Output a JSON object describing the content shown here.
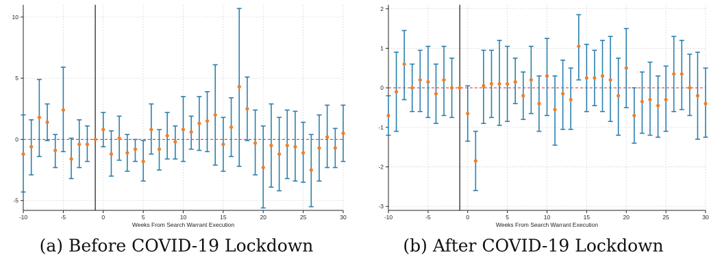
{
  "chart_data": [
    {
      "type": "scatter",
      "caption": "(a) Before COVID-19 Lockdown",
      "xlabel": "Weeks From Search Warrant Execution",
      "ylabel": "",
      "xlim": [
        -10,
        30
      ],
      "ylim": [
        -5.8,
        11
      ],
      "xticks": [
        -10,
        -5,
        0,
        5,
        10,
        15,
        20,
        25,
        30
      ],
      "yticks": [
        -5,
        0,
        5,
        10
      ],
      "grid": true,
      "vline": -1,
      "hline": 0,
      "colors": {
        "point": "#ee7f29",
        "errorbar": "#2a7fae",
        "vline": "#000000",
        "hline": "#d62728",
        "grid": "#d8d8d8"
      },
      "points": [
        {
          "x": -10,
          "y": -1.2,
          "lo": -4.3,
          "hi": 2.0
        },
        {
          "x": -9,
          "y": -0.6,
          "lo": -2.9,
          "hi": 1.6
        },
        {
          "x": -8,
          "y": 1.8,
          "lo": -1.4,
          "hi": 4.9
        },
        {
          "x": -7,
          "y": 1.4,
          "lo": -0.1,
          "hi": 2.9
        },
        {
          "x": -6,
          "y": -0.9,
          "lo": -2.3,
          "hi": 0.4
        },
        {
          "x": -5,
          "y": 2.4,
          "lo": -1.0,
          "hi": 5.9
        },
        {
          "x": -4,
          "y": -1.6,
          "lo": -3.2,
          "hi": 0.1
        },
        {
          "x": -3,
          "y": -0.4,
          "lo": -2.3,
          "hi": 1.6
        },
        {
          "x": -2,
          "y": -0.4,
          "lo": -1.8,
          "hi": 1.1
        },
        {
          "x": -1,
          "y": 0.0,
          "lo": 0.0,
          "hi": 0.0
        },
        {
          "x": 0,
          "y": 0.8,
          "lo": -0.6,
          "hi": 2.2
        },
        {
          "x": 1,
          "y": -1.2,
          "lo": -3.0,
          "hi": 0.7
        },
        {
          "x": 2,
          "y": 0.1,
          "lo": -1.7,
          "hi": 1.9
        },
        {
          "x": 3,
          "y": -1.1,
          "lo": -2.6,
          "hi": 0.4
        },
        {
          "x": 4,
          "y": -0.8,
          "lo": -1.8,
          "hi": 0.0
        },
        {
          "x": 5,
          "y": -1.8,
          "lo": -3.4,
          "hi": -0.1
        },
        {
          "x": 6,
          "y": 0.8,
          "lo": -1.2,
          "hi": 2.9
        },
        {
          "x": 7,
          "y": -0.8,
          "lo": -2.5,
          "hi": 0.8
        },
        {
          "x": 8,
          "y": 0.3,
          "lo": -1.6,
          "hi": 2.2
        },
        {
          "x": 9,
          "y": -0.2,
          "lo": -1.6,
          "hi": 1.1
        },
        {
          "x": 10,
          "y": 0.8,
          "lo": -1.8,
          "hi": 3.5
        },
        {
          "x": 11,
          "y": 0.6,
          "lo": -0.8,
          "hi": 1.9
        },
        {
          "x": 12,
          "y": 1.3,
          "lo": -0.9,
          "hi": 3.5
        },
        {
          "x": 13,
          "y": 1.5,
          "lo": -1.0,
          "hi": 3.9
        },
        {
          "x": 14,
          "y": 2.0,
          "lo": -2.1,
          "hi": 6.1
        },
        {
          "x": 15,
          "y": -0.4,
          "lo": -2.6,
          "hi": 1.8
        },
        {
          "x": 16,
          "y": 1.0,
          "lo": -1.4,
          "hi": 3.4
        },
        {
          "x": 17,
          "y": 4.3,
          "lo": -2.2,
          "hi": 10.7
        },
        {
          "x": 18,
          "y": 2.5,
          "lo": -0.1,
          "hi": 5.1
        },
        {
          "x": 19,
          "y": -0.3,
          "lo": -2.9,
          "hi": 2.4
        },
        {
          "x": 20,
          "y": -2.3,
          "lo": -5.6,
          "hi": 1.1
        },
        {
          "x": 21,
          "y": -0.5,
          "lo": -3.9,
          "hi": 2.9
        },
        {
          "x": 22,
          "y": -1.2,
          "lo": -4.2,
          "hi": 1.8
        },
        {
          "x": 23,
          "y": -0.5,
          "lo": -3.2,
          "hi": 2.4
        },
        {
          "x": 24,
          "y": -0.6,
          "lo": -3.4,
          "hi": 2.3
        },
        {
          "x": 25,
          "y": -1.1,
          "lo": -3.5,
          "hi": 1.4
        },
        {
          "x": 26,
          "y": -2.5,
          "lo": -5.5,
          "hi": 0.4
        },
        {
          "x": 27,
          "y": -0.7,
          "lo": -3.4,
          "hi": 2.0
        },
        {
          "x": 28,
          "y": 0.2,
          "lo": -2.3,
          "hi": 2.8
        },
        {
          "x": 29,
          "y": -0.7,
          "lo": -2.3,
          "hi": 0.9
        },
        {
          "x": 30,
          "y": 0.5,
          "lo": -1.8,
          "hi": 2.8
        }
      ]
    },
    {
      "type": "scatter",
      "caption": "(b) After COVID-19 Lockdown",
      "xlabel": "Weeks From Search Warrant Execution",
      "ylabel": "",
      "xlim": [
        -10,
        30
      ],
      "ylim": [
        -3.1,
        2.1
      ],
      "xticks": [
        -10,
        -5,
        0,
        5,
        10,
        15,
        20,
        25,
        30
      ],
      "yticks": [
        -3,
        -2,
        -1,
        0,
        1,
        2
      ],
      "grid": true,
      "vline": -1,
      "hline": 0,
      "colors": {
        "point": "#ee7f29",
        "errorbar": "#2a7fae",
        "vline": "#000000",
        "hline": "#d62728",
        "grid": "#d8d8d8"
      },
      "points": [
        {
          "x": -10,
          "y": -0.7,
          "lo": -1.2,
          "hi": -0.2
        },
        {
          "x": -9,
          "y": -0.1,
          "lo": -1.1,
          "hi": 0.9
        },
        {
          "x": -8,
          "y": 0.6,
          "lo": -0.3,
          "hi": 1.45
        },
        {
          "x": -7,
          "y": 0.0,
          "lo": -0.6,
          "hi": 0.6
        },
        {
          "x": -6,
          "y": 0.2,
          "lo": -0.6,
          "hi": 0.95
        },
        {
          "x": -5,
          "y": 0.15,
          "lo": -0.75,
          "hi": 1.05
        },
        {
          "x": -4,
          "y": -0.15,
          "lo": -0.9,
          "hi": 0.6
        },
        {
          "x": -3,
          "y": 0.2,
          "lo": -0.7,
          "hi": 1.05
        },
        {
          "x": -2,
          "y": 0.0,
          "lo": -0.75,
          "hi": 0.75
        },
        {
          "x": -1,
          "y": 0.0,
          "lo": 0.0,
          "hi": 0.0
        },
        {
          "x": 0,
          "y": -0.65,
          "lo": -1.35,
          "hi": 0.05
        },
        {
          "x": 1,
          "y": -1.85,
          "lo": -2.6,
          "hi": -1.1
        },
        {
          "x": 2,
          "y": 0.05,
          "lo": -0.9,
          "hi": 0.95
        },
        {
          "x": 3,
          "y": 0.1,
          "lo": -0.75,
          "hi": 0.95
        },
        {
          "x": 4,
          "y": 0.1,
          "lo": -0.95,
          "hi": 1.2
        },
        {
          "x": 5,
          "y": 0.1,
          "lo": -0.85,
          "hi": 1.05
        },
        {
          "x": 6,
          "y": 0.15,
          "lo": -0.4,
          "hi": 0.75
        },
        {
          "x": 7,
          "y": -0.2,
          "lo": -0.8,
          "hi": 0.4
        },
        {
          "x": 8,
          "y": 0.2,
          "lo": -0.65,
          "hi": 1.05
        },
        {
          "x": 9,
          "y": -0.4,
          "lo": -1.1,
          "hi": 0.3
        },
        {
          "x": 10,
          "y": 0.3,
          "lo": -0.7,
          "hi": 1.25
        },
        {
          "x": 11,
          "y": -0.55,
          "lo": -1.45,
          "hi": 0.3
        },
        {
          "x": 12,
          "y": -0.15,
          "lo": -1.05,
          "hi": 0.7
        },
        {
          "x": 13,
          "y": -0.3,
          "lo": -1.05,
          "hi": 0.5
        },
        {
          "x": 14,
          "y": 1.05,
          "lo": 0.2,
          "hi": 1.85
        },
        {
          "x": 15,
          "y": 0.25,
          "lo": -0.6,
          "hi": 1.1
        },
        {
          "x": 16,
          "y": 0.25,
          "lo": -0.45,
          "hi": 0.95
        },
        {
          "x": 17,
          "y": 0.3,
          "lo": -0.6,
          "hi": 1.2
        },
        {
          "x": 18,
          "y": 0.2,
          "lo": -0.85,
          "hi": 1.3
        },
        {
          "x": 19,
          "y": -0.2,
          "lo": -1.2,
          "hi": 0.75
        },
        {
          "x": 20,
          "y": 0.5,
          "lo": -0.5,
          "hi": 1.5
        },
        {
          "x": 21,
          "y": -0.7,
          "lo": -1.4,
          "hi": 0.0
        },
        {
          "x": 22,
          "y": -0.35,
          "lo": -1.15,
          "hi": 0.4
        },
        {
          "x": 23,
          "y": -0.3,
          "lo": -1.2,
          "hi": 0.65
        },
        {
          "x": 24,
          "y": -0.45,
          "lo": -1.25,
          "hi": 0.3
        },
        {
          "x": 25,
          "y": -0.3,
          "lo": -1.1,
          "hi": 0.55
        },
        {
          "x": 26,
          "y": 0.35,
          "lo": -0.6,
          "hi": 1.3
        },
        {
          "x": 27,
          "y": 0.35,
          "lo": -0.55,
          "hi": 1.2
        },
        {
          "x": 28,
          "y": 0.0,
          "lo": -0.7,
          "hi": 0.85
        },
        {
          "x": 29,
          "y": -0.2,
          "lo": -1.3,
          "hi": 0.9
        },
        {
          "x": 30,
          "y": -0.4,
          "lo": -1.25,
          "hi": 0.5
        }
      ]
    }
  ]
}
